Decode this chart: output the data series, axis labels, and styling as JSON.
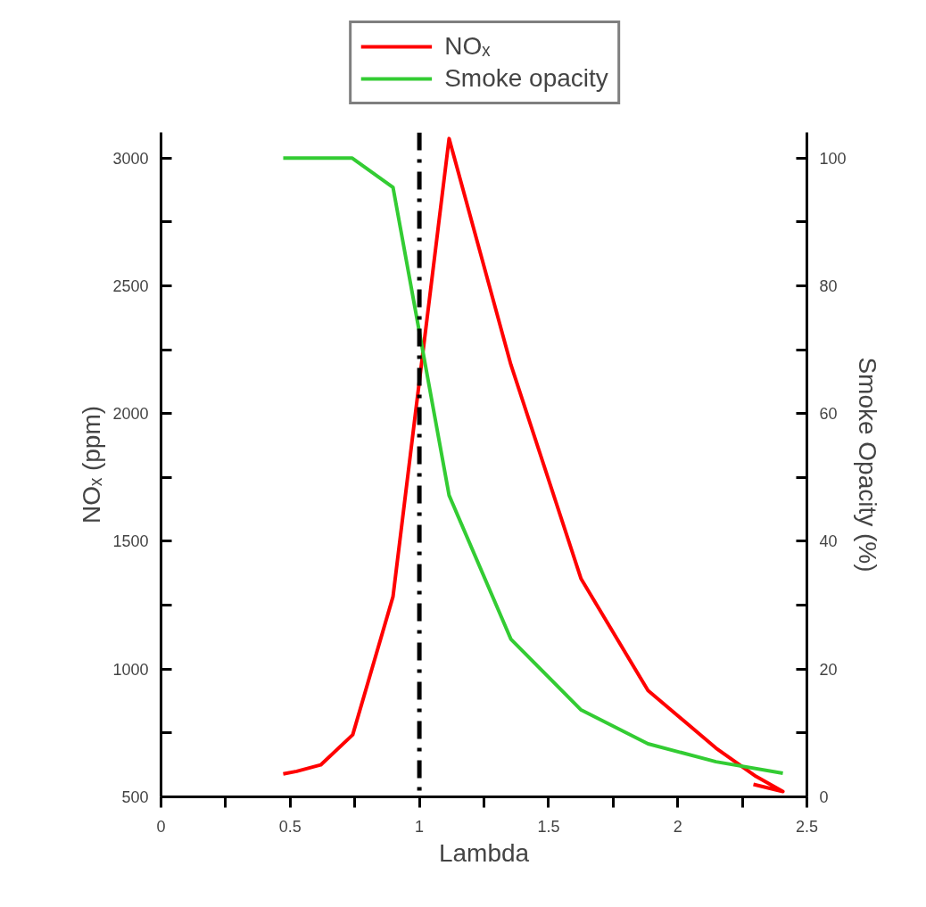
{
  "chart_data": {
    "type": "line",
    "xlabel": "Lambda",
    "ylabel": "NOₓ (ppm)",
    "y2label": "Smoke Opacity (%)",
    "series": [
      {
        "name": "NOₓ",
        "color": "#ff0000",
        "x": [
          0.473,
          0.525,
          0.618,
          0.742,
          0.898,
          1.115,
          1.354,
          1.626,
          1.885,
          2.148,
          2.303,
          2.407,
          2.293
        ],
        "values": [
          590,
          600,
          625,
          743,
          1284,
          3076,
          2192,
          1353,
          916,
          691,
          580,
          521,
          549
        ]
      },
      {
        "name": "Smoke opacity",
        "color": "#33cc33",
        "axis": "y2",
        "x": [
          0.473,
          0.739,
          0.898,
          1.115,
          1.354,
          1.626,
          1.885,
          2.148,
          2.407
        ],
        "values": [
          100,
          100,
          95.4,
          47.2,
          24.7,
          13.6,
          8.3,
          5.5,
          3.7
        ]
      }
    ],
    "xlim": [
      0,
      2.5
    ],
    "ylim": [
      500,
      3100
    ],
    "y2lim": [
      0,
      104
    ],
    "xticks": [
      0,
      {
        "value": 0.25,
        "label": null
      },
      0.5,
      {
        "value": 0.75,
        "label": null
      },
      1,
      {
        "value": 1.25,
        "label": null
      },
      1.5,
      {
        "value": 1.75,
        "label": null
      },
      2,
      {
        "value": 2.25,
        "label": null
      },
      2.5
    ],
    "yticks": [
      500,
      {
        "value": 750,
        "label": null
      },
      1000,
      {
        "value": 1250,
        "label": null
      },
      1500,
      {
        "value": 1750,
        "label": null
      },
      2000,
      {
        "value": 2250,
        "label": null
      },
      2500,
      {
        "value": 2750,
        "label": null
      },
      3000
    ],
    "y2ticks": [
      0,
      {
        "value": 10,
        "label": null
      },
      20,
      {
        "value": 30,
        "label": null
      },
      40,
      {
        "value": 50,
        "label": null
      },
      60,
      {
        "value": 70,
        "label": null
      },
      80,
      {
        "value": 90,
        "label": null
      },
      100
    ],
    "ref_lines": [
      {
        "axis": "x",
        "value": 1,
        "color": "#000000",
        "line_style": "dashdot"
      }
    ],
    "grid": false,
    "legend": "top",
    "line_style": "solid"
  }
}
